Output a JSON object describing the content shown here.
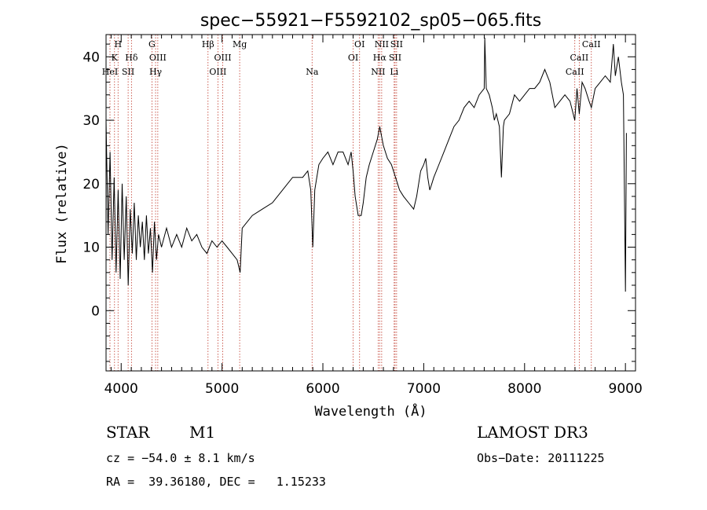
{
  "chart_data": {
    "type": "line",
    "title": "spec−55921−F5592102_sp05−065.fits",
    "xlabel": "Wavelength (Å)",
    "ylabel": "Flux (relative)",
    "xlim": [
      3850,
      9100
    ],
    "ylim": [
      -9.5,
      43.5
    ],
    "x_ticks": [
      4000,
      5000,
      6000,
      7000,
      8000,
      9000
    ],
    "x_tick_labels": [
      "4000",
      "5000",
      "6000",
      "7000",
      "8000",
      "9000"
    ],
    "y_ticks": [
      0,
      10,
      20,
      30,
      40
    ],
    "y_tick_labels": [
      "0",
      "10",
      "20",
      "30",
      "40"
    ],
    "grid": false,
    "series": [
      {
        "points": [
          [
            3850,
            30
          ],
          [
            3870,
            12
          ],
          [
            3890,
            25
          ],
          [
            3910,
            8
          ],
          [
            3930,
            21
          ],
          [
            3950,
            6
          ],
          [
            3970,
            19
          ],
          [
            3990,
            5
          ],
          [
            4010,
            20
          ],
          [
            4030,
            8
          ],
          [
            4050,
            18
          ],
          [
            4070,
            4
          ],
          [
            4090,
            16
          ],
          [
            4110,
            9
          ],
          [
            4130,
            17
          ],
          [
            4150,
            8
          ],
          [
            4170,
            15
          ],
          [
            4190,
            10
          ],
          [
            4210,
            14
          ],
          [
            4230,
            8
          ],
          [
            4250,
            15
          ],
          [
            4270,
            9
          ],
          [
            4290,
            13
          ],
          [
            4310,
            6
          ],
          [
            4330,
            14
          ],
          [
            4350,
            8
          ],
          [
            4370,
            12
          ],
          [
            4400,
            10
          ],
          [
            4450,
            13
          ],
          [
            4500,
            10
          ],
          [
            4550,
            12
          ],
          [
            4600,
            10
          ],
          [
            4650,
            13
          ],
          [
            4700,
            11
          ],
          [
            4750,
            12
          ],
          [
            4800,
            10
          ],
          [
            4850,
            9
          ],
          [
            4900,
            11
          ],
          [
            4950,
            10
          ],
          [
            5000,
            11
          ],
          [
            5050,
            10
          ],
          [
            5100,
            9
          ],
          [
            5150,
            8
          ],
          [
            5180,
            6
          ],
          [
            5200,
            13
          ],
          [
            5300,
            15
          ],
          [
            5400,
            16
          ],
          [
            5500,
            17
          ],
          [
            5600,
            19
          ],
          [
            5700,
            21
          ],
          [
            5800,
            21
          ],
          [
            5850,
            22
          ],
          [
            5880,
            19
          ],
          [
            5900,
            10
          ],
          [
            5920,
            19
          ],
          [
            5960,
            23
          ],
          [
            6000,
            24
          ],
          [
            6050,
            25
          ],
          [
            6100,
            23
          ],
          [
            6150,
            25
          ],
          [
            6200,
            25
          ],
          [
            6250,
            23
          ],
          [
            6280,
            25
          ],
          [
            6300,
            22
          ],
          [
            6320,
            18
          ],
          [
            6350,
            15
          ],
          [
            6380,
            15
          ],
          [
            6400,
            17
          ],
          [
            6430,
            21
          ],
          [
            6460,
            23
          ],
          [
            6500,
            25
          ],
          [
            6540,
            27
          ],
          [
            6564,
            29
          ],
          [
            6600,
            26
          ],
          [
            6640,
            24
          ],
          [
            6680,
            23
          ],
          [
            6720,
            21
          ],
          [
            6760,
            19
          ],
          [
            6800,
            18
          ],
          [
            6850,
            17
          ],
          [
            6900,
            16
          ],
          [
            6930,
            18
          ],
          [
            6970,
            22
          ],
          [
            7000,
            23
          ],
          [
            7020,
            24
          ],
          [
            7040,
            21
          ],
          [
            7060,
            19
          ],
          [
            7080,
            20
          ],
          [
            7100,
            21
          ],
          [
            7150,
            23
          ],
          [
            7200,
            25
          ],
          [
            7250,
            27
          ],
          [
            7300,
            29
          ],
          [
            7350,
            30
          ],
          [
            7400,
            32
          ],
          [
            7450,
            33
          ],
          [
            7500,
            32
          ],
          [
            7550,
            34
          ],
          [
            7600,
            35
          ],
          [
            7605,
            43
          ],
          [
            7620,
            35
          ],
          [
            7650,
            34
          ],
          [
            7680,
            32
          ],
          [
            7700,
            30
          ],
          [
            7720,
            31
          ],
          [
            7750,
            29
          ],
          [
            7770,
            21
          ],
          [
            7790,
            29
          ],
          [
            7800,
            30
          ],
          [
            7850,
            31
          ],
          [
            7900,
            34
          ],
          [
            7950,
            33
          ],
          [
            8000,
            34
          ],
          [
            8050,
            35
          ],
          [
            8100,
            35
          ],
          [
            8150,
            36
          ],
          [
            8200,
            38
          ],
          [
            8250,
            36
          ],
          [
            8300,
            32
          ],
          [
            8350,
            33
          ],
          [
            8400,
            34
          ],
          [
            8450,
            33
          ],
          [
            8498,
            30
          ],
          [
            8520,
            35
          ],
          [
            8542,
            31
          ],
          [
            8570,
            36
          ],
          [
            8600,
            35
          ],
          [
            8640,
            33
          ],
          [
            8662,
            32
          ],
          [
            8700,
            35
          ],
          [
            8750,
            36
          ],
          [
            8800,
            37
          ],
          [
            8850,
            36
          ],
          [
            8880,
            42
          ],
          [
            8900,
            37
          ],
          [
            8930,
            40
          ],
          [
            8960,
            36
          ],
          [
            8980,
            34
          ],
          [
            9000,
            3
          ],
          [
            9010,
            28
          ]
        ]
      }
    ],
    "lines": [
      {
        "wl": 3889,
        "label": "HeI",
        "tier": 3
      },
      {
        "wl": 3934,
        "label": "K",
        "tier": 2
      },
      {
        "wl": 3969,
        "label": "H",
        "tier": 1
      },
      {
        "wl": 4069,
        "label": "SII",
        "tier": 3
      },
      {
        "wl": 4102,
        "label": "Hδ",
        "tier": 2
      },
      {
        "wl": 4305,
        "label": "G",
        "tier": 1
      },
      {
        "wl": 4341,
        "label": "Hγ",
        "tier": 3
      },
      {
        "wl": 4363,
        "label": "OIII",
        "tier": 2
      },
      {
        "wl": 4861,
        "label": "Hβ",
        "tier": 1
      },
      {
        "wl": 4959,
        "label": "OIII",
        "tier": 3
      },
      {
        "wl": 5007,
        "label": "OIII",
        "tier": 2
      },
      {
        "wl": 5175,
        "label": "Mg",
        "tier": 1
      },
      {
        "wl": 5893,
        "label": "Na",
        "tier": 3
      },
      {
        "wl": 6300,
        "label": "OI",
        "tier": 2
      },
      {
        "wl": 6364,
        "label": "OI",
        "tier": 1
      },
      {
        "wl": 6548,
        "label": "NII",
        "tier": 3
      },
      {
        "wl": 6563,
        "label": "Hα",
        "tier": 2
      },
      {
        "wl": 6583,
        "label": "NII",
        "tier": 1
      },
      {
        "wl": 6707,
        "label": "Li",
        "tier": 3
      },
      {
        "wl": 6716,
        "label": "SII",
        "tier": 2
      },
      {
        "wl": 6731,
        "label": "SII",
        "tier": 1
      },
      {
        "wl": 8498,
        "label": "CaII",
        "tier": 3
      },
      {
        "wl": 8542,
        "label": "CaII",
        "tier": 2
      },
      {
        "wl": 8662,
        "label": "CaII",
        "tier": 1
      }
    ]
  },
  "info": {
    "object_class": "STAR",
    "subclass": "M1",
    "survey": "LAMOST DR3",
    "cz": "cz = −54.0 ± 8.1 km/s",
    "obs_date": "Obs−Date: 20111225",
    "radec": "RA =  39.36180, DEC =   1.15233"
  },
  "colors": {
    "spectrum": "#000000",
    "line_markers": "#c0392b",
    "axes": "#000000"
  }
}
